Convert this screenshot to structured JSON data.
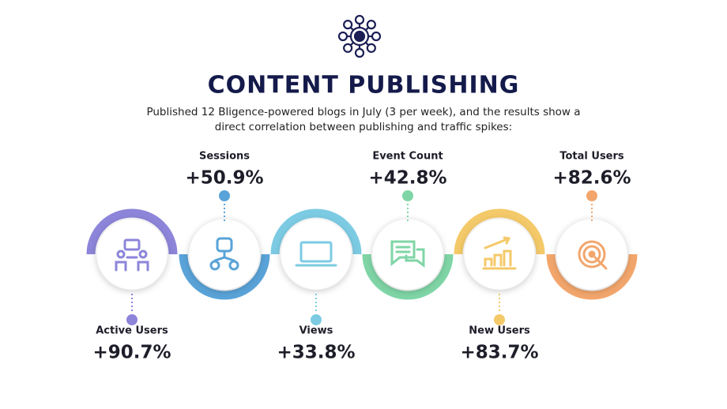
{
  "header": {
    "title": "CONTENT PUBLISHING",
    "description_lines": [
      "Published 12 Bligence-powered blogs in July (3 per week), and the results show a",
      "direct correlation between publishing and traffic spikes:"
    ]
  },
  "metrics": [
    {
      "label": "Active Users",
      "value": "+90.7%"
    },
    {
      "label": "Sessions",
      "value": "+50.9%"
    },
    {
      "label": "Views",
      "value": "+33.8%"
    },
    {
      "label": "Event Count",
      "value": "+42.8%"
    },
    {
      "label": "New Users",
      "value": "+83.7%"
    },
    {
      "label": "Total Users",
      "value": "+82.6%"
    }
  ]
}
